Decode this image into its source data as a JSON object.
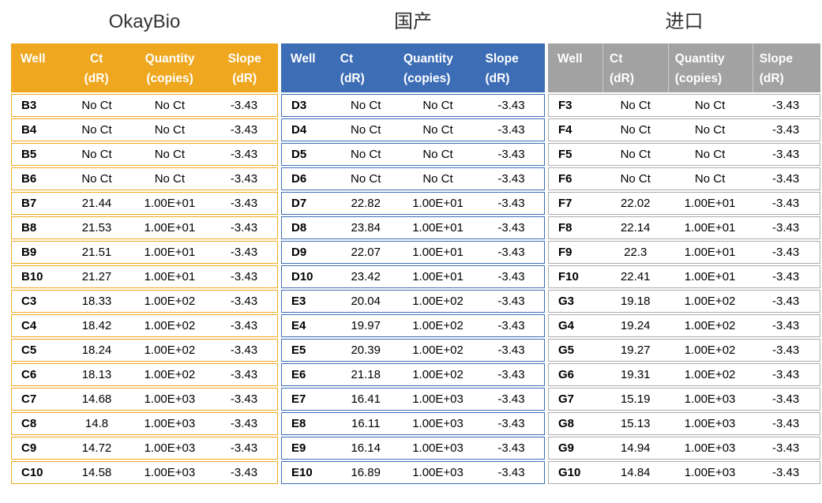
{
  "page": {
    "background": "#ffffff"
  },
  "tables": [
    {
      "id": "okaybio",
      "title": "OkayBio",
      "theme": {
        "header_bg": "#EEA71E",
        "header_text": "#ffffff",
        "row_border": "#F0A81E",
        "header_dividers": false,
        "header_align": "center"
      },
      "columns": [
        {
          "line1": "Well",
          "line2": ""
        },
        {
          "line1": "Ct",
          "line2": "(dR)"
        },
        {
          "line1": "Quantity",
          "line2": "(copies)"
        },
        {
          "line1": "Slope",
          "line2": "(dR)"
        }
      ],
      "rows": [
        [
          "B3",
          "No Ct",
          "No Ct",
          "-3.43"
        ],
        [
          "B4",
          "No Ct",
          "No Ct",
          "-3.43"
        ],
        [
          "B5",
          "No Ct",
          "No Ct",
          "-3.43"
        ],
        [
          "B6",
          "No Ct",
          "No Ct",
          "-3.43"
        ],
        [
          "B7",
          "21.44",
          "1.00E+01",
          "-3.43"
        ],
        [
          "B8",
          "21.53",
          "1.00E+01",
          "-3.43"
        ],
        [
          "B9",
          "21.51",
          "1.00E+01",
          "-3.43"
        ],
        [
          "B10",
          "21.27",
          "1.00E+01",
          "-3.43"
        ],
        [
          "C3",
          "18.33",
          "1.00E+02",
          "-3.43"
        ],
        [
          "C4",
          "18.42",
          "1.00E+02",
          "-3.43"
        ],
        [
          "C5",
          "18.24",
          "1.00E+02",
          "-3.43"
        ],
        [
          "C6",
          "18.13",
          "1.00E+02",
          "-3.43"
        ],
        [
          "C7",
          "14.68",
          "1.00E+03",
          "-3.43"
        ],
        [
          "C8",
          "14.8",
          "1.00E+03",
          "-3.43"
        ],
        [
          "C9",
          "14.72",
          "1.00E+03",
          "-3.43"
        ],
        [
          "C10",
          "14.58",
          "1.00E+03",
          "-3.43"
        ]
      ]
    },
    {
      "id": "domestic",
      "title": "国产",
      "theme": {
        "header_bg": "#3D6DB5",
        "header_text": "#ffffff",
        "row_border": "#3D6DB5",
        "header_dividers": false,
        "header_align": "left"
      },
      "columns": [
        {
          "line1": "Well",
          "line2": ""
        },
        {
          "line1": "Ct",
          "line2": "(dR)"
        },
        {
          "line1": "Quantity",
          "line2": "(copies)"
        },
        {
          "line1": "Slope",
          "line2": "(dR)"
        }
      ],
      "rows": [
        [
          "D3",
          "No Ct",
          "No Ct",
          "-3.43"
        ],
        [
          "D4",
          "No Ct",
          "No Ct",
          "-3.43"
        ],
        [
          "D5",
          "No Ct",
          "No Ct",
          "-3.43"
        ],
        [
          "D6",
          "No Ct",
          "No Ct",
          "-3.43"
        ],
        [
          "D7",
          "22.82",
          "1.00E+01",
          "-3.43"
        ],
        [
          "D8",
          "23.84",
          "1.00E+01",
          "-3.43"
        ],
        [
          "D9",
          "22.07",
          "1.00E+01",
          "-3.43"
        ],
        [
          "D10",
          "23.42",
          "1.00E+01",
          "-3.43"
        ],
        [
          "E3",
          "20.04",
          "1.00E+02",
          "-3.43"
        ],
        [
          "E4",
          "19.97",
          "1.00E+02",
          "-3.43"
        ],
        [
          "E5",
          "20.39",
          "1.00E+02",
          "-3.43"
        ],
        [
          "E6",
          "21.18",
          "1.00E+02",
          "-3.43"
        ],
        [
          "E7",
          "16.41",
          "1.00E+03",
          "-3.43"
        ],
        [
          "E8",
          "16.11",
          "1.00E+03",
          "-3.43"
        ],
        [
          "E9",
          "16.14",
          "1.00E+03",
          "-3.43"
        ],
        [
          "E10",
          "16.89",
          "1.00E+03",
          "-3.43"
        ]
      ]
    },
    {
      "id": "imported",
      "title": "进口",
      "theme": {
        "header_bg": "#A2A2A2",
        "header_text": "#ffffff",
        "row_border": "#ABABAB",
        "header_dividers": true,
        "header_align": "left"
      },
      "columns": [
        {
          "line1": "Well",
          "line2": ""
        },
        {
          "line1": "Ct",
          "line2": "(dR)"
        },
        {
          "line1": "Quantity",
          "line2": "(copies)"
        },
        {
          "line1": "Slope",
          "line2": "(dR)"
        }
      ],
      "rows": [
        [
          "F3",
          "No Ct",
          "No Ct",
          "-3.43"
        ],
        [
          "F4",
          "No Ct",
          "No Ct",
          "-3.43"
        ],
        [
          "F5",
          "No Ct",
          "No Ct",
          "-3.43"
        ],
        [
          "F6",
          "No Ct",
          "No Ct",
          "-3.43"
        ],
        [
          "F7",
          "22.02",
          "1.00E+01",
          "-3.43"
        ],
        [
          "F8",
          "22.14",
          "1.00E+01",
          "-3.43"
        ],
        [
          "F9",
          "22.3",
          "1.00E+01",
          "-3.43"
        ],
        [
          "F10",
          "22.41",
          "1.00E+01",
          "-3.43"
        ],
        [
          "G3",
          "19.18",
          "1.00E+02",
          "-3.43"
        ],
        [
          "G4",
          "19.24",
          "1.00E+02",
          "-3.43"
        ],
        [
          "G5",
          "19.27",
          "1.00E+02",
          "-3.43"
        ],
        [
          "G6",
          "19.31",
          "1.00E+02",
          "-3.43"
        ],
        [
          "G7",
          "15.19",
          "1.00E+03",
          "-3.43"
        ],
        [
          "G8",
          "15.13",
          "1.00E+03",
          "-3.43"
        ],
        [
          "G9",
          "14.94",
          "1.00E+03",
          "-3.43"
        ],
        [
          "G10",
          "14.84",
          "1.00E+03",
          "-3.43"
        ]
      ]
    }
  ]
}
